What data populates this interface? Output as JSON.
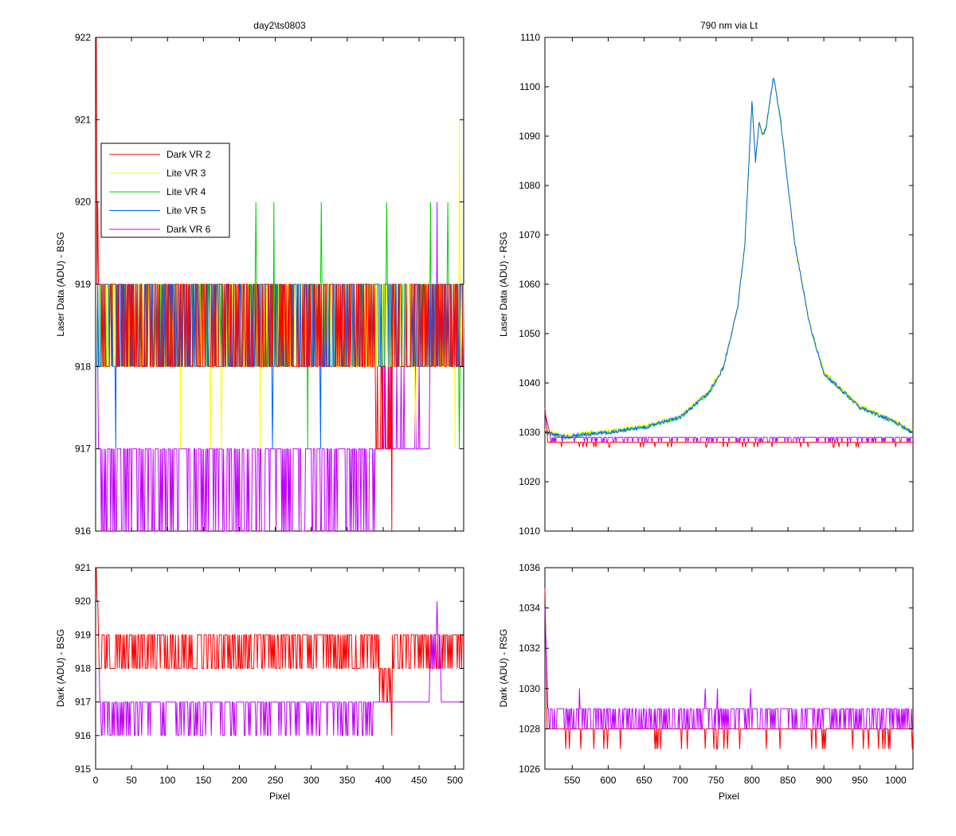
{
  "figure": {
    "left_top": {
      "title": "day2\\ts0803",
      "ylabel": "Laser Data (ADU) - BSG",
      "xlim": [
        0,
        512
      ],
      "ylim": [
        916,
        922
      ],
      "yticks": [
        916,
        917,
        918,
        919,
        920,
        921,
        922
      ],
      "legend": [
        "Dark VR 2",
        "Lite VR 3",
        "Lite VR 4",
        "Lite VR 5",
        "Dark VR 6"
      ]
    },
    "right_top": {
      "title": "790 nm via Lt",
      "ylabel": "Laser Data (ADU) - RSG",
      "xlim": [
        512,
        1024
      ],
      "ylim": [
        1010,
        1110
      ],
      "yticks": [
        1010,
        1020,
        1030,
        1040,
        1050,
        1060,
        1070,
        1080,
        1090,
        1100,
        1110
      ]
    },
    "left_bottom": {
      "ylabel": "Dark (ADU) - BSG",
      "xlabel": "Pixel",
      "xlim": [
        0,
        512
      ],
      "ylim": [
        915,
        921
      ],
      "yticks": [
        915,
        916,
        917,
        918,
        919,
        920,
        921
      ],
      "xticks": [
        0,
        50,
        100,
        150,
        200,
        250,
        300,
        350,
        400,
        450,
        500
      ]
    },
    "right_bottom": {
      "ylabel": "Dark (ADU) - RSG",
      "xlabel": "Pixel",
      "xlim": [
        512,
        1024
      ],
      "ylim": [
        1026,
        1036
      ],
      "yticks": [
        1026,
        1028,
        1030,
        1032,
        1034,
        1036
      ],
      "xticks": [
        550,
        600,
        650,
        700,
        750,
        800,
        850,
        900,
        950,
        1000
      ]
    }
  },
  "chart_data": [
    {
      "type": "line",
      "panel": "left_top",
      "title": "day2\\ts0803",
      "xlabel": "",
      "ylabel": "Laser Data (ADU) - BSG",
      "xlim": [
        0,
        512
      ],
      "ylim": [
        916,
        922
      ],
      "legend_position": "upper-left",
      "series": [
        {
          "name": "Dark VR 2",
          "color": "#ff0000",
          "base": 918,
          "toggle": 919,
          "description": "noise toggling between 918 and 919; dips to 917 near pixel 390-412; spike to 922 at pixel 1, dip to 916 at pixel 412"
        },
        {
          "name": "Lite VR 3",
          "color": "#ffff00",
          "base": 918,
          "toggle": 919,
          "description": "noise between 918 and 919; dips to 917 occasionally; spike to 921 near pixel 506"
        },
        {
          "name": "Lite VR 4",
          "color": "#00d000",
          "base": 918,
          "toggle": 919,
          "description": "noise between 918 and 919; spikes to 920 near pixels 223, 248, 314, 405, 466, 490"
        },
        {
          "name": "Lite VR 5",
          "color": "#0064ff",
          "base": 918,
          "toggle": 919,
          "description": "noise between 918 and 919; dips to 917 near pixels 28, 246, 313"
        },
        {
          "name": "Dark VR 6",
          "color": "#c000ff",
          "base": 917,
          "toggle": 916,
          "description": "noise between 916 and 917 up to pixel ~390; then 917-918; 918-919 toggling from ~465; spike to 920 near pixel 475"
        }
      ]
    },
    {
      "type": "line",
      "panel": "right_top",
      "title": "790 nm via Lt",
      "xlabel": "",
      "ylabel": "Laser Data (ADU) - RSG",
      "xlim": [
        512,
        1024
      ],
      "ylim": [
        1010,
        1110
      ],
      "series": [
        {
          "name": "Lite VR",
          "color": "#0064ff",
          "x": [
            512,
            540,
            560,
            600,
            650,
            700,
            740,
            760,
            780,
            790,
            800,
            805,
            810,
            815,
            820,
            830,
            840,
            850,
            860,
            880,
            900,
            950,
            1000,
            1024
          ],
          "y": [
            1030,
            1029,
            1029.5,
            1030,
            1031,
            1033,
            1038,
            1043,
            1055,
            1068,
            1097,
            1085,
            1093,
            1090,
            1092,
            1102,
            1093,
            1080,
            1068,
            1052,
            1042,
            1035,
            1032,
            1030
          ]
        },
        {
          "name": "Dark VR 6",
          "color": "#c000ff",
          "baseline": 1028.8
        },
        {
          "name": "Dark VR 2",
          "color": "#ff0000",
          "baseline": 1028
        }
      ]
    },
    {
      "type": "line",
      "panel": "left_bottom",
      "xlabel": "Pixel",
      "ylabel": "Dark (ADU) - BSG",
      "xlim": [
        0,
        512
      ],
      "ylim": [
        915,
        921
      ],
      "series": [
        {
          "name": "Dark VR 2",
          "color": "#ff0000",
          "base": 919,
          "toggle": 918,
          "description": "toggling 918-919; start at 921; dips to 917 near 400-412; dip to 916 near 412"
        },
        {
          "name": "Dark VR 6",
          "color": "#c000ff",
          "base": 917,
          "toggle": 916,
          "description": "toggling 916-917 up to ~390; flat 917 then 918-919 toggle after ~465; spike to 920 near 475"
        }
      ]
    },
    {
      "type": "line",
      "panel": "right_bottom",
      "xlabel": "Pixel",
      "ylabel": "Dark (ADU) - RSG",
      "xlim": [
        512,
        1024
      ],
      "ylim": [
        1026,
        1036
      ],
      "series": [
        {
          "name": "Dark VR 2",
          "color": "#ff0000",
          "base": 1028,
          "description": "baseline 1028 with dips to 1027; start spike 1035 at pixel 514"
        },
        {
          "name": "Dark VR 6",
          "color": "#c000ff",
          "base": 1029,
          "description": "toggling 1028-1029; spikes to 1030 near 560, 735, 752, 798"
        }
      ]
    }
  ]
}
